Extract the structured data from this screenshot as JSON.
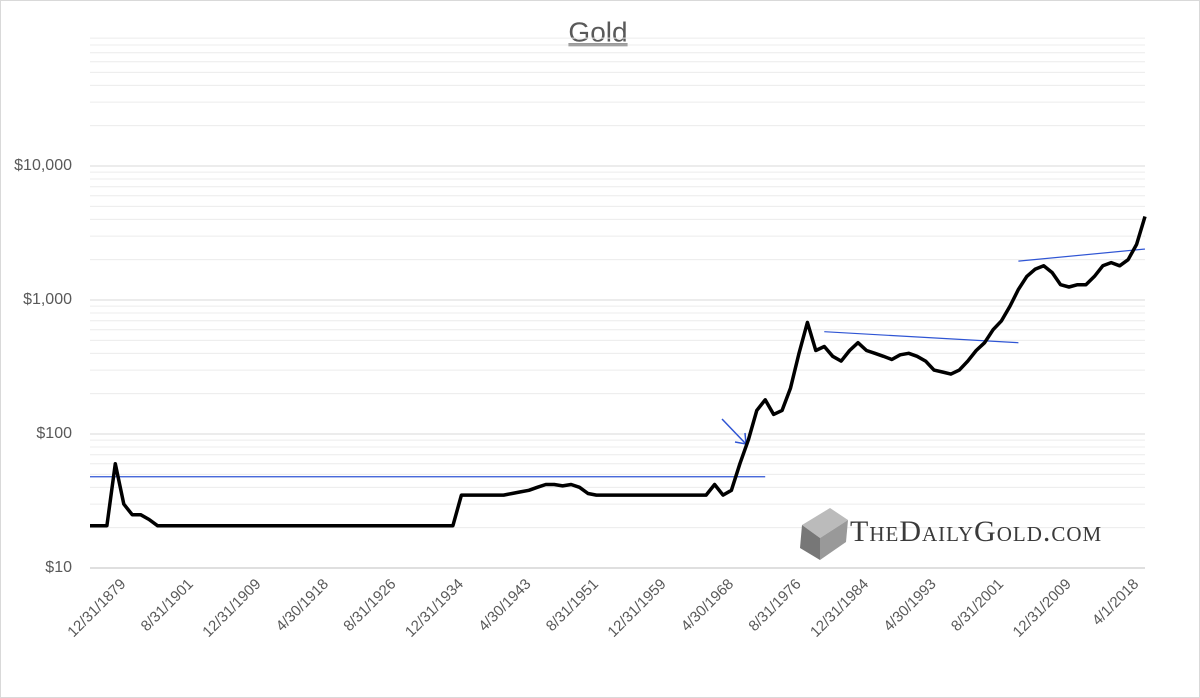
{
  "chart_data": {
    "type": "line",
    "title": "Gold",
    "watermark": "TheDailyGold.com",
    "categories": [
      null,
      null,
      null,
      null,
      "12/31/1879",
      null,
      null,
      null,
      null,
      null,
      null,
      null,
      "8/31/1901",
      null,
      null,
      null,
      null,
      null,
      null,
      null,
      "12/31/1909",
      null,
      null,
      null,
      null,
      null,
      null,
      null,
      "4/30/1918",
      null,
      null,
      null,
      null,
      null,
      null,
      null,
      "8/31/1926",
      null,
      null,
      null,
      null,
      null,
      null,
      null,
      "12/31/1934",
      null,
      null,
      null,
      null,
      null,
      null,
      null,
      "4/30/1943",
      null,
      null,
      null,
      null,
      null,
      null,
      null,
      "8/31/1951",
      null,
      null,
      null,
      null,
      null,
      null,
      null,
      "12/31/1959",
      null,
      null,
      null,
      null,
      null,
      null,
      null,
      "4/30/1968",
      null,
      null,
      null,
      null,
      null,
      null,
      null,
      "8/31/1976",
      null,
      null,
      null,
      null,
      null,
      null,
      null,
      "12/31/1984",
      null,
      null,
      null,
      null,
      null,
      null,
      null,
      "4/30/1993",
      null,
      null,
      null,
      null,
      null,
      null,
      null,
      "8/31/2001",
      null,
      null,
      null,
      null,
      null,
      null,
      null,
      "12/31/2009",
      null,
      null,
      null,
      null,
      null,
      null,
      null,
      "4/1/2018",
      null
    ],
    "values": [
      20.67,
      20.67,
      20.67,
      60,
      30,
      25,
      25,
      23,
      20.67,
      20.67,
      20.67,
      20.67,
      20.67,
      20.67,
      20.67,
      20.67,
      20.67,
      20.67,
      20.67,
      20.67,
      20.67,
      20.67,
      20.67,
      20.67,
      20.67,
      20.67,
      20.67,
      20.67,
      20.67,
      20.67,
      20.67,
      20.67,
      20.67,
      20.67,
      20.67,
      20.67,
      20.67,
      20.67,
      20.67,
      20.67,
      20.67,
      20.67,
      20.67,
      20.67,
      35,
      35,
      35,
      35,
      35,
      35,
      36,
      37,
      38,
      40,
      42,
      42,
      41,
      42,
      40,
      36,
      35,
      35,
      35,
      35,
      35,
      35,
      35,
      35,
      35,
      35,
      35,
      35,
      35,
      35,
      42,
      35,
      38,
      60,
      90,
      150,
      180,
      140,
      150,
      220,
      400,
      680,
      420,
      450,
      380,
      350,
      420,
      480,
      420,
      400,
      380,
      360,
      390,
      400,
      380,
      350,
      300,
      290,
      280,
      300,
      350,
      420,
      480,
      600,
      700,
      900,
      1200,
      1500,
      1700,
      1800,
      1600,
      1300,
      1250,
      1300,
      1300,
      1500,
      1800,
      1900,
      1800,
      2000,
      2600,
      4200
    ],
    "color": "#000000",
    "log_y": true,
    "ylim": [
      10,
      100000
    ],
    "yticks": [
      {
        "value": 10,
        "label": "$10"
      },
      {
        "value": 100,
        "label": "$100"
      },
      {
        "value": 1000,
        "label": "$1,000"
      },
      {
        "value": 10000,
        "label": "$10,000"
      }
    ],
    "minor_yticks": [
      20,
      30,
      40,
      50,
      60,
      70,
      80,
      90,
      200,
      300,
      400,
      500,
      600,
      700,
      800,
      900,
      2000,
      3000,
      4000,
      5000,
      6000,
      7000,
      8000,
      9000,
      20000,
      30000,
      40000,
      50000,
      60000,
      70000,
      80000,
      90000
    ],
    "grid": true,
    "trendlines": [
      {
        "color": "#2f55d4",
        "start": [
          0,
          48
        ],
        "end": [
          80,
          48
        ]
      },
      {
        "color": "#2f55d4",
        "start": [
          87,
          580
        ],
        "end": [
          110,
          480
        ]
      },
      {
        "color": "#2f55d4",
        "start": [
          110,
          1950
        ],
        "end": [
          125,
          2400
        ]
      }
    ]
  }
}
